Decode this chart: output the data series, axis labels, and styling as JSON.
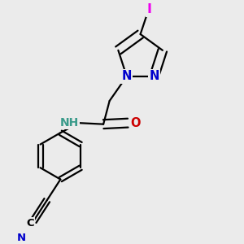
{
  "bg_color": "#ebebeb",
  "bond_color": "#000000",
  "bond_width": 1.6,
  "atom_colors": {
    "N": "#0000cc",
    "O": "#cc0000",
    "I": "#ee00ee",
    "C": "#000000",
    "NH": "#3a9a8a"
  },
  "font_size_atom": 10.5
}
